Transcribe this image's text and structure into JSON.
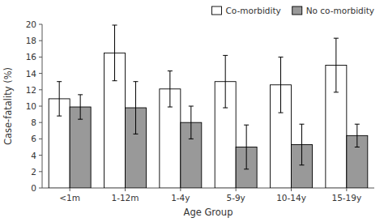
{
  "chart_data": {
    "type": "bar",
    "categories": [
      "<1m",
      "1-12m",
      "1-4y",
      "5-9y",
      "10-14y",
      "15-19y"
    ],
    "series": [
      {
        "name": "Co-morbidity",
        "color": "#ffffff",
        "values": [
          10.9,
          16.5,
          12.1,
          13.0,
          12.6,
          15.0
        ],
        "errors": [
          2.1,
          3.4,
          2.2,
          3.2,
          3.4,
          3.3
        ]
      },
      {
        "name": "No co-morbidity",
        "color": "#999999",
        "values": [
          9.9,
          9.8,
          8.0,
          5.0,
          5.3,
          6.4
        ],
        "errors": [
          1.5,
          3.2,
          2.0,
          2.7,
          2.5,
          1.4
        ]
      }
    ],
    "xlabel": "Age Group",
    "ylabel": "Case-fatality (%)",
    "ylim": [
      0,
      20
    ],
    "yticks": [
      0,
      2,
      4,
      6,
      8,
      10,
      12,
      14,
      16,
      18,
      20
    ],
    "legend": "upper right"
  }
}
